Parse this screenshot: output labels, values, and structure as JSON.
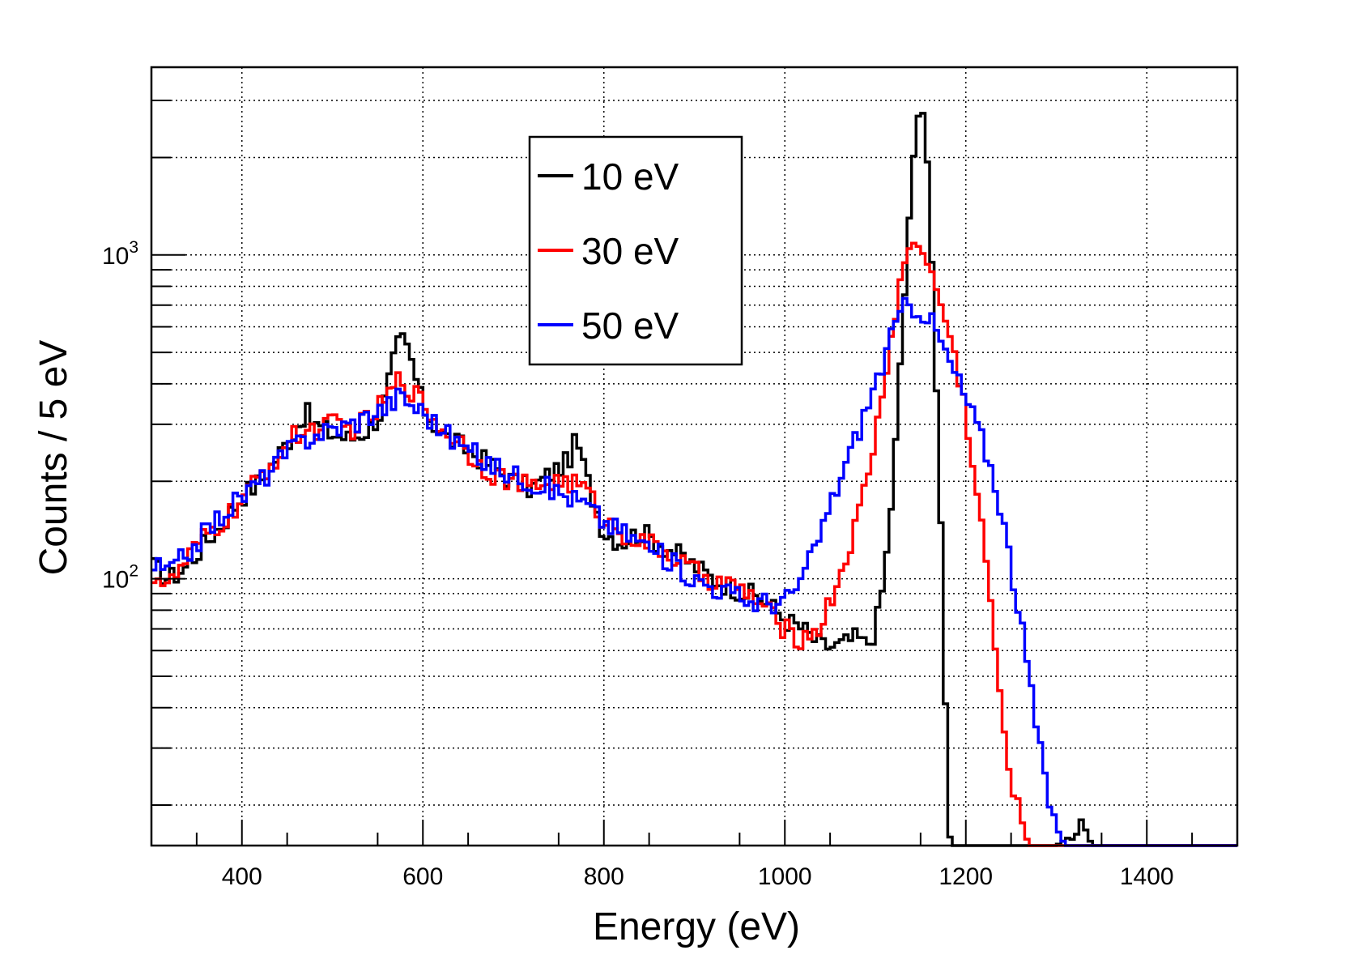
{
  "chart_data": {
    "type": "line",
    "style": "step-histogram",
    "title": "",
    "xlabel": "Energy (eV)",
    "ylabel": "Counts / 5 eV",
    "xlim": [
      300,
      1500
    ],
    "ylim": [
      15,
      3800
    ],
    "yscale": "log",
    "grid": true,
    "x_ticks": [
      "400",
      "600",
      "800",
      "1000",
      "1200",
      "1400"
    ],
    "y_tick_labels": [
      {
        "base": "10",
        "exp": "2",
        "value": 100
      },
      {
        "base": "10",
        "exp": "3",
        "value": 1000
      }
    ],
    "legend": {
      "placement": "top-center"
    },
    "series": [
      {
        "name": "10 eV",
        "color": "#000000",
        "points": [
          [
            300,
            110
          ],
          [
            320,
            100
          ],
          [
            340,
            110
          ],
          [
            360,
            130
          ],
          [
            380,
            150
          ],
          [
            400,
            180
          ],
          [
            420,
            200
          ],
          [
            440,
            240
          ],
          [
            460,
            290
          ],
          [
            470,
            330
          ],
          [
            480,
            300
          ],
          [
            500,
            280
          ],
          [
            520,
            270
          ],
          [
            540,
            290
          ],
          [
            555,
            330
          ],
          [
            565,
            440
          ],
          [
            575,
            560
          ],
          [
            585,
            500
          ],
          [
            600,
            340
          ],
          [
            620,
            280
          ],
          [
            640,
            260
          ],
          [
            660,
            240
          ],
          [
            680,
            220
          ],
          [
            700,
            200
          ],
          [
            720,
            190
          ],
          [
            740,
            210
          ],
          [
            760,
            230
          ],
          [
            770,
            270
          ],
          [
            780,
            210
          ],
          [
            790,
            170
          ],
          [
            800,
            140
          ],
          [
            820,
            130
          ],
          [
            840,
            140
          ],
          [
            860,
            130
          ],
          [
            880,
            120
          ],
          [
            900,
            110
          ],
          [
            920,
            100
          ],
          [
            940,
            95
          ],
          [
            960,
            90
          ],
          [
            980,
            85
          ],
          [
            1000,
            75
          ],
          [
            1020,
            70
          ],
          [
            1040,
            62
          ],
          [
            1060,
            62
          ],
          [
            1080,
            66
          ],
          [
            1090,
            62
          ],
          [
            1100,
            70
          ],
          [
            1110,
            100
          ],
          [
            1120,
            200
          ],
          [
            1130,
            580
          ],
          [
            1140,
            1700
          ],
          [
            1145,
            2400
          ],
          [
            1150,
            3000
          ],
          [
            1155,
            2500
          ],
          [
            1160,
            1500
          ],
          [
            1165,
            600
          ],
          [
            1170,
            250
          ],
          [
            1175,
            80
          ],
          [
            1180,
            20
          ],
          [
            1185,
            15
          ],
          [
            1200,
            15
          ],
          [
            1300,
            15
          ],
          [
            1330,
            17
          ],
          [
            1340,
            15
          ],
          [
            1500,
            15
          ]
        ]
      },
      {
        "name": "30 eV",
        "color": "#ff0000",
        "points": [
          [
            300,
            105
          ],
          [
            320,
            95
          ],
          [
            340,
            115
          ],
          [
            360,
            135
          ],
          [
            380,
            150
          ],
          [
            400,
            175
          ],
          [
            420,
            205
          ],
          [
            440,
            240
          ],
          [
            460,
            280
          ],
          [
            480,
            290
          ],
          [
            500,
            300
          ],
          [
            520,
            290
          ],
          [
            540,
            310
          ],
          [
            560,
            360
          ],
          [
            575,
            420
          ],
          [
            585,
            390
          ],
          [
            600,
            350
          ],
          [
            620,
            290
          ],
          [
            640,
            270
          ],
          [
            660,
            230
          ],
          [
            680,
            210
          ],
          [
            700,
            200
          ],
          [
            720,
            190
          ],
          [
            740,
            200
          ],
          [
            760,
            200
          ],
          [
            780,
            190
          ],
          [
            800,
            150
          ],
          [
            820,
            140
          ],
          [
            840,
            130
          ],
          [
            860,
            125
          ],
          [
            880,
            115
          ],
          [
            900,
            105
          ],
          [
            920,
            100
          ],
          [
            940,
            95
          ],
          [
            960,
            90
          ],
          [
            980,
            80
          ],
          [
            1000,
            70
          ],
          [
            1020,
            65
          ],
          [
            1040,
            72
          ],
          [
            1060,
            100
          ],
          [
            1080,
            150
          ],
          [
            1100,
            270
          ],
          [
            1110,
            420
          ],
          [
            1120,
            600
          ],
          [
            1130,
            900
          ],
          [
            1140,
            1100
          ],
          [
            1150,
            1050
          ],
          [
            1160,
            900
          ],
          [
            1170,
            750
          ],
          [
            1180,
            600
          ],
          [
            1190,
            450
          ],
          [
            1200,
            330
          ],
          [
            1210,
            200
          ],
          [
            1220,
            130
          ],
          [
            1230,
            75
          ],
          [
            1240,
            35
          ],
          [
            1250,
            25
          ],
          [
            1260,
            18
          ],
          [
            1270,
            15
          ],
          [
            1500,
            15
          ]
        ]
      },
      {
        "name": "50 eV",
        "color": "#0000ff",
        "points": [
          [
            300,
            110
          ],
          [
            320,
            105
          ],
          [
            340,
            120
          ],
          [
            360,
            140
          ],
          [
            380,
            160
          ],
          [
            400,
            180
          ],
          [
            420,
            200
          ],
          [
            440,
            230
          ],
          [
            460,
            260
          ],
          [
            480,
            280
          ],
          [
            500,
            290
          ],
          [
            520,
            300
          ],
          [
            540,
            320
          ],
          [
            560,
            340
          ],
          [
            575,
            370
          ],
          [
            590,
            340
          ],
          [
            600,
            330
          ],
          [
            620,
            290
          ],
          [
            640,
            260
          ],
          [
            660,
            240
          ],
          [
            680,
            220
          ],
          [
            700,
            210
          ],
          [
            720,
            200
          ],
          [
            740,
            190
          ],
          [
            760,
            180
          ],
          [
            780,
            170
          ],
          [
            800,
            150
          ],
          [
            820,
            140
          ],
          [
            840,
            130
          ],
          [
            860,
            120
          ],
          [
            880,
            110
          ],
          [
            900,
            100
          ],
          [
            920,
            95
          ],
          [
            940,
            90
          ],
          [
            960,
            85
          ],
          [
            980,
            85
          ],
          [
            1000,
            85
          ],
          [
            1020,
            100
          ],
          [
            1040,
            140
          ],
          [
            1060,
            200
          ],
          [
            1080,
            280
          ],
          [
            1100,
            400
          ],
          [
            1110,
            480
          ],
          [
            1120,
            580
          ],
          [
            1130,
            680
          ],
          [
            1140,
            700
          ],
          [
            1150,
            680
          ],
          [
            1160,
            640
          ],
          [
            1170,
            560
          ],
          [
            1180,
            480
          ],
          [
            1190,
            420
          ],
          [
            1200,
            360
          ],
          [
            1210,
            310
          ],
          [
            1220,
            260
          ],
          [
            1230,
            210
          ],
          [
            1240,
            160
          ],
          [
            1250,
            110
          ],
          [
            1260,
            75
          ],
          [
            1270,
            50
          ],
          [
            1280,
            32
          ],
          [
            1290,
            22
          ],
          [
            1300,
            17
          ],
          [
            1310,
            15
          ],
          [
            1500,
            15
          ]
        ]
      }
    ]
  }
}
